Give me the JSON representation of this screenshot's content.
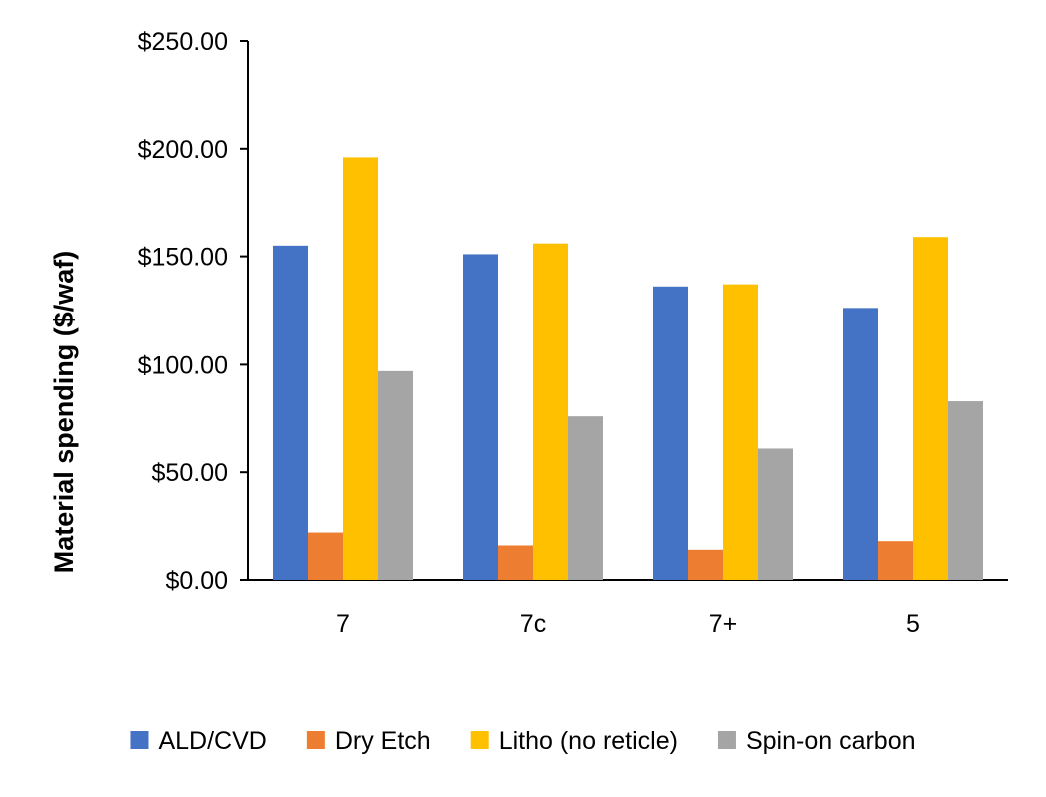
{
  "chart_data": {
    "type": "bar",
    "title": "",
    "xlabel": "",
    "ylabel": "Material spending ($/waf)",
    "categories": [
      "7",
      "7c",
      "7+",
      "5"
    ],
    "series": [
      {
        "name": "ALD/CVD",
        "color": "#4472C4",
        "values": [
          155,
          151,
          136,
          126
        ]
      },
      {
        "name": "Dry Etch",
        "color": "#ED7D31",
        "values": [
          22,
          16,
          14,
          18
        ]
      },
      {
        "name": "Litho (no reticle)",
        "color": "#FFC000",
        "values": [
          196,
          156,
          137,
          159
        ]
      },
      {
        "name": "Spin-on carbon",
        "color": "#A5A5A5",
        "values": [
          97,
          76,
          61,
          83
        ]
      }
    ],
    "ylim": [
      0,
      250
    ],
    "yticks": [
      0,
      50,
      100,
      150,
      200,
      250
    ],
    "ytick_labels": [
      "$0.00",
      "$50.00",
      "$100.00",
      "$150.00",
      "$200.00",
      "$250.00"
    ],
    "grid": false,
    "legend_position": "bottom"
  }
}
